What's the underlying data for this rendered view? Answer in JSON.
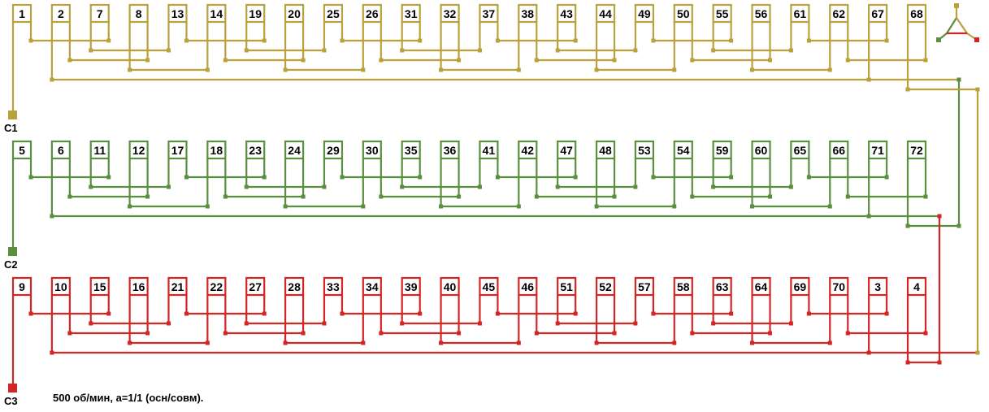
{
  "phases": [
    {
      "terminal": "C1",
      "color": "#b9a13c",
      "slots": [
        "1",
        "2",
        "7",
        "8",
        "13",
        "14",
        "19",
        "20",
        "25",
        "26",
        "31",
        "32",
        "37",
        "38",
        "43",
        "44",
        "49",
        "50",
        "55",
        "56",
        "61",
        "62",
        "67",
        "68"
      ]
    },
    {
      "terminal": "C2",
      "color": "#5b8f3f",
      "slots": [
        "5",
        "6",
        "11",
        "12",
        "17",
        "18",
        "23",
        "24",
        "29",
        "30",
        "35",
        "36",
        "41",
        "42",
        "47",
        "48",
        "53",
        "54",
        "59",
        "60",
        "65",
        "66",
        "71",
        "72"
      ]
    },
    {
      "terminal": "C3",
      "color": "#d42525",
      "slots": [
        "9",
        "10",
        "15",
        "16",
        "21",
        "22",
        "27",
        "28",
        "33",
        "34",
        "39",
        "40",
        "45",
        "46",
        "51",
        "52",
        "57",
        "58",
        "63",
        "64",
        "69",
        "70",
        "3",
        "4"
      ]
    }
  ],
  "caption": "500 об/мин, а=1/1 (осн/совм).",
  "connection_symbol": "delta-triangle-icon"
}
